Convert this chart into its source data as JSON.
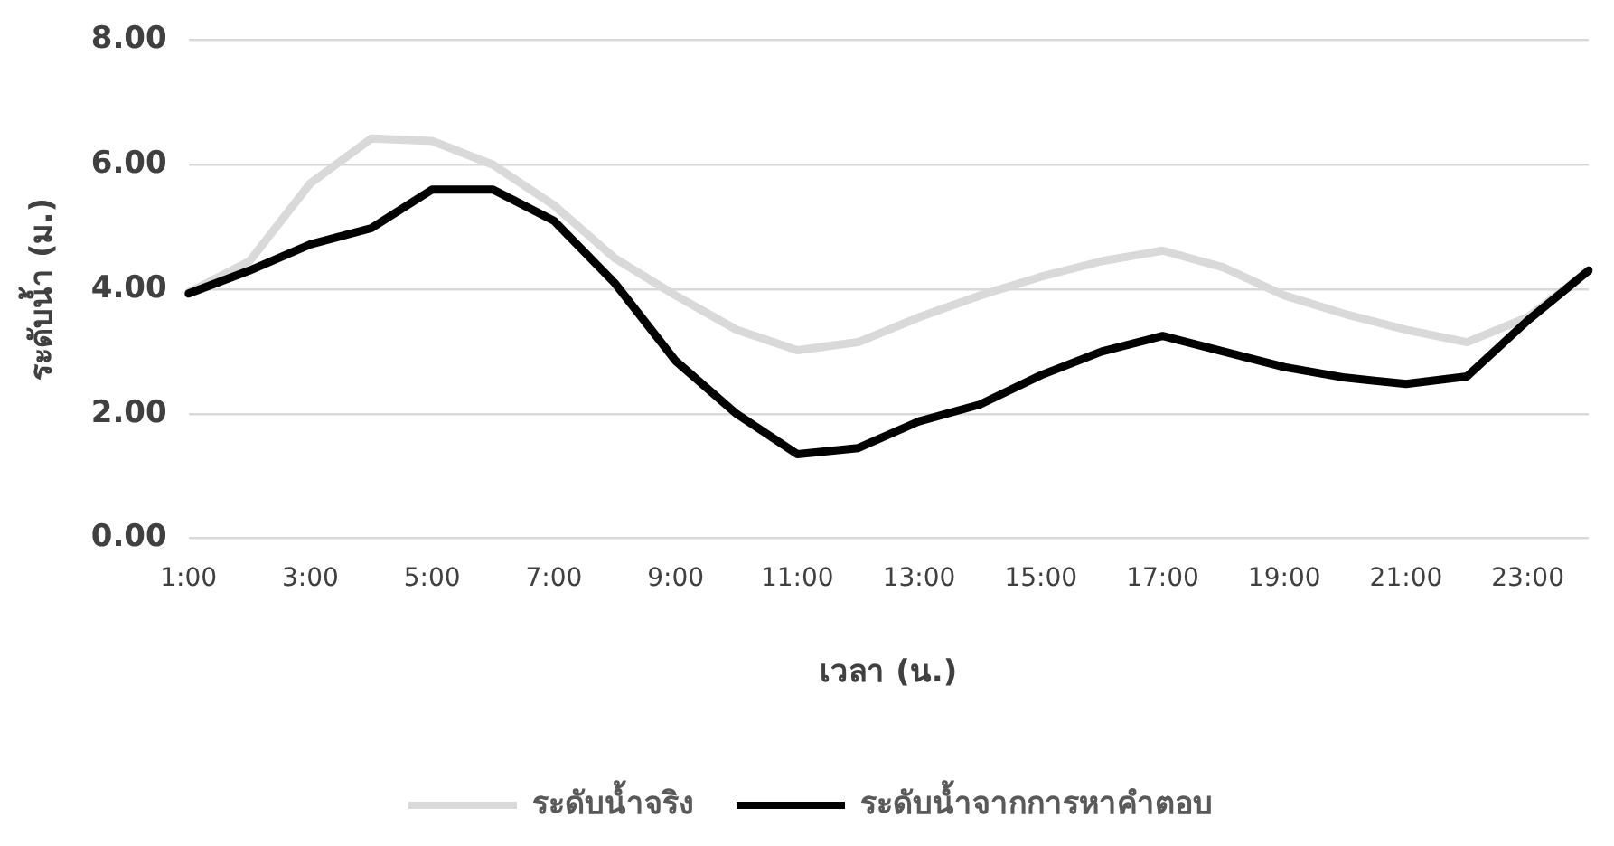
{
  "chart_data": {
    "type": "line",
    "xlabel": "เวลา (น.)",
    "ylabel": "ระดับน้ำ (ม.)",
    "categories": [
      "1:00",
      null,
      "3:00",
      null,
      "5:00",
      null,
      "7:00",
      null,
      "9:00",
      null,
      "11:00",
      null,
      "13:00",
      null,
      "15:00",
      null,
      "17:00",
      null,
      "19:00",
      null,
      "21:00",
      null,
      "23:00",
      null
    ],
    "series": [
      {
        "name": "ระดับน้ำจริง",
        "color": "#d9d9d9",
        "values": [
          3.95,
          4.45,
          5.7,
          6.42,
          6.38,
          6.0,
          5.35,
          4.5,
          3.9,
          3.35,
          3.02,
          3.15,
          3.55,
          3.9,
          4.2,
          4.45,
          4.62,
          4.35,
          3.9,
          3.6,
          3.35,
          3.15,
          3.55,
          4.3
        ]
      },
      {
        "name": "ระดับน้ำจากการหาคำตอบ",
        "color": "#000000",
        "values": [
          3.93,
          4.3,
          4.72,
          4.98,
          5.6,
          5.6,
          5.1,
          4.1,
          2.85,
          2.0,
          1.35,
          1.45,
          1.88,
          2.15,
          2.62,
          3.0,
          3.25,
          3.0,
          2.75,
          2.58,
          2.48,
          2.6,
          3.5,
          4.3
        ]
      }
    ],
    "ylim": [
      0,
      8
    ],
    "yticks": [
      {
        "value": 0,
        "label": "0.00"
      },
      {
        "value": 2,
        "label": "2.00"
      },
      {
        "value": 4,
        "label": "4.00"
      },
      {
        "value": 6,
        "label": "6.00"
      },
      {
        "value": 8,
        "label": "8.00"
      }
    ],
    "grid": "y",
    "legend": "bottom",
    "marker": "none",
    "line_style": "solid"
  }
}
